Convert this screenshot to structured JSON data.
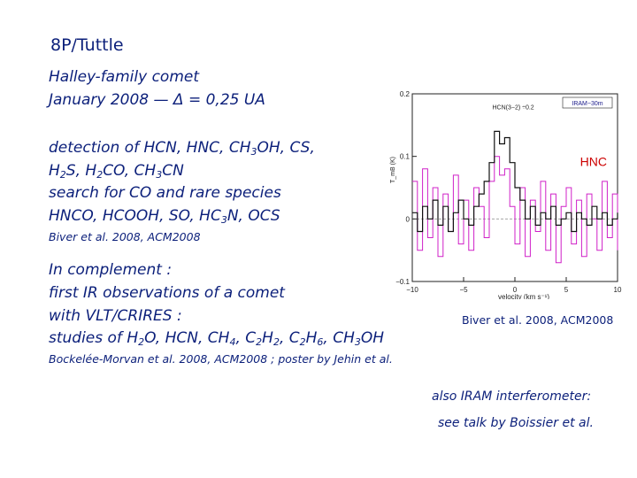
{
  "slide": {
    "title": "8P/Tuttle",
    "subtitle_line1": "Halley-family comet",
    "subtitle_line2": "January 2008 — Δ = 0,25 UA",
    "detection": {
      "l1_a": "detection of HCN, HNC, CH",
      "l1_b": "3",
      "l1_c": "OH, CS,",
      "l2_a": "H",
      "l2_b": "2",
      "l2_c": "S, H",
      "l2_d": "2",
      "l2_e": "CO, CH",
      "l2_f": "3",
      "l2_g": "CN",
      "l3": "search for CO and rare species",
      "l4_a": "HNCO, HCOOH, SO, HC",
      "l4_b": "3",
      "l4_c": "N, OCS"
    },
    "ref1": "Biver et al. 2008, ACM2008",
    "complement": {
      "l1": "In complement :",
      "l2": "first IR observations of a comet",
      "l3": "with VLT/CRIRES :",
      "l4_a": "studies of H",
      "l4_b": "2",
      "l4_c": "O, HCN, CH",
      "l4_d": "4",
      "l4_e": ", C",
      "l4_f": "2",
      "l4_g": "H",
      "l4_h": "2",
      "l4_i": ", C",
      "l4_j": "2",
      "l4_k": "H",
      "l4_l": "6",
      "l4_m": ", CH",
      "l4_n": "3",
      "l4_o": "OH"
    },
    "ref2": "Bockelée-Morvan et al. 2008, ACM2008 ; poster by Jehin et al.",
    "chart_caption": "Biver et al. 2008, ACM2008",
    "iram_l1": "also IRAM interferometer:",
    "iram_l2": "see talk by Boissier et al.",
    "colors": {
      "text": "#0b1f7a",
      "hnc_label": "#cc0000",
      "hcn_series": "#111111",
      "hnc_series": "#d020c8"
    }
  },
  "chart_data": {
    "type": "line",
    "xlabel": "velocity (km s⁻¹)",
    "ylabel": "T_mB (K)",
    "xlim": [
      -10,
      10
    ],
    "ylim": [
      -0.1,
      0.2
    ],
    "xticks": [
      "−10",
      "−5",
      "0",
      "5",
      "10"
    ],
    "yticks": [
      "−0.1",
      "0",
      "0.1",
      "0.2"
    ],
    "legend_box": "IRAM−30m",
    "annotations": [
      "HCN(3−2) ÷0.2",
      "HNC"
    ],
    "series": [
      {
        "name": "HCN(3−2) ÷0.2",
        "x": [
          -10,
          -9.5,
          -9,
          -8.5,
          -8,
          -7.5,
          -7,
          -6.5,
          -6,
          -5.5,
          -5,
          -4.5,
          -4,
          -3.5,
          -3,
          -2.5,
          -2,
          -1.5,
          -1,
          -0.5,
          0,
          0.5,
          1,
          1.5,
          2,
          2.5,
          3,
          3.5,
          4,
          4.5,
          5,
          5.5,
          6,
          6.5,
          7,
          7.5,
          8,
          8.5,
          9,
          9.5,
          10
        ],
        "y": [
          0.01,
          -0.02,
          0.02,
          0.0,
          0.03,
          -0.01,
          0.02,
          -0.02,
          0.01,
          0.03,
          0.0,
          -0.01,
          0.02,
          0.04,
          0.06,
          0.09,
          0.14,
          0.12,
          0.13,
          0.09,
          0.05,
          0.03,
          0.0,
          0.02,
          -0.01,
          0.01,
          0.0,
          0.02,
          -0.01,
          0.0,
          0.01,
          -0.02,
          0.01,
          0.0,
          -0.01,
          0.02,
          0.0,
          0.01,
          -0.01,
          0.0,
          0.01
        ]
      },
      {
        "name": "HNC",
        "x": [
          -10,
          -9.5,
          -9,
          -8.5,
          -8,
          -7.5,
          -7,
          -6.5,
          -6,
          -5.5,
          -5,
          -4.5,
          -4,
          -3.5,
          -3,
          -2.5,
          -2,
          -1.5,
          -1,
          -0.5,
          0,
          0.5,
          1,
          1.5,
          2,
          2.5,
          3,
          3.5,
          4,
          4.5,
          5,
          5.5,
          6,
          6.5,
          7,
          7.5,
          8,
          8.5,
          9,
          9.5,
          10
        ],
        "y": [
          0.06,
          -0.05,
          0.08,
          -0.03,
          0.05,
          -0.06,
          0.04,
          -0.02,
          0.07,
          -0.04,
          0.03,
          -0.05,
          0.05,
          0.02,
          -0.03,
          0.06,
          0.1,
          0.07,
          0.08,
          0.02,
          -0.04,
          0.05,
          -0.06,
          0.03,
          -0.02,
          0.06,
          -0.05,
          0.04,
          -0.07,
          0.02,
          0.05,
          -0.04,
          0.03,
          -0.06,
          0.04,
          0.0,
          -0.05,
          0.06,
          -0.03,
          0.04,
          -0.05
        ]
      }
    ]
  }
}
